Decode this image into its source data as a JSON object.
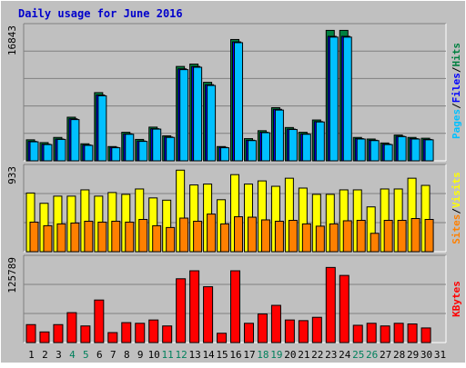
{
  "title": "Daily usage for June 2016",
  "colors": {
    "title": "#0000cc",
    "frame_bg": "#c0c0c0",
    "plot_bg": "#c0c0c0",
    "hits": "#008040",
    "files": "#0000ff",
    "pages": "#00c0ff",
    "visits": "#ffff00",
    "sites": "#ff8000",
    "kbytes": "#ff0000",
    "weekend_day": "#00805c",
    "weekday": "#000000",
    "grid": "#808080"
  },
  "chart_data": [
    {
      "type": "bar",
      "panel": "hits-files-pages",
      "ymax_label": "16843",
      "ylim": [
        0,
        16843
      ],
      "grid": true,
      "side_labels": [
        "Pages",
        "/",
        "Files",
        "/",
        "Hits"
      ],
      "series": [
        {
          "name": "Hits",
          "values": [
            2650,
            2300,
            2950,
            5500,
            2150,
            8600,
            1800,
            3600,
            2700,
            4250,
            3150,
            11900,
            12200,
            9900,
            1800,
            15300,
            2800,
            3800,
            6700,
            4200,
            3600,
            5150,
            16450,
            16450,
            2950,
            2750,
            2250,
            3250,
            2950,
            2850
          ]
        },
        {
          "name": "Files",
          "values": [
            2450,
            2100,
            2750,
            5300,
            2000,
            8300,
            1700,
            3400,
            2500,
            4050,
            3000,
            11600,
            11900,
            9600,
            1700,
            15000,
            2600,
            3600,
            6500,
            4000,
            3400,
            4950,
            15700,
            15700,
            2800,
            2600,
            2100,
            3100,
            2800,
            2700
          ]
        },
        {
          "name": "Pages",
          "values": [
            2400,
            2050,
            2700,
            5200,
            1950,
            8200,
            1650,
            3350,
            2450,
            4000,
            2950,
            11500,
            11800,
            9500,
            1650,
            14900,
            2550,
            3550,
            6400,
            3950,
            3350,
            4900,
            15600,
            15600,
            2750,
            2550,
            2050,
            3050,
            2750,
            2650
          ]
        }
      ]
    },
    {
      "type": "bar",
      "panel": "visits-sites",
      "ymax_label": "933",
      "ylim": [
        0,
        933
      ],
      "grid": true,
      "side_labels": [
        "Sites",
        "/",
        "Visits"
      ],
      "series": [
        {
          "name": "Visits",
          "values": [
            655,
            540,
            620,
            620,
            690,
            620,
            660,
            640,
            700,
            600,
            575,
            910,
            745,
            755,
            580,
            860,
            755,
            790,
            730,
            820,
            710,
            640,
            640,
            690,
            690,
            500,
            700,
            700,
            820,
            740
          ]
        },
        {
          "name": "Sites",
          "values": [
            330,
            290,
            310,
            320,
            340,
            330,
            340,
            330,
            360,
            290,
            270,
            375,
            340,
            420,
            310,
            390,
            385,
            355,
            340,
            350,
            310,
            285,
            310,
            345,
            350,
            205,
            350,
            350,
            370,
            360
          ]
        }
      ]
    },
    {
      "type": "bar",
      "panel": "kbytes",
      "ymax_label": "125789",
      "ylim": [
        0,
        125789
      ],
      "grid": true,
      "side_labels": [
        "KBytes"
      ],
      "series": [
        {
          "name": "KBytes",
          "values": [
            27000,
            16000,
            27000,
            45000,
            25000,
            64000,
            15000,
            30000,
            29000,
            34000,
            25000,
            96000,
            108000,
            84000,
            14000,
            108000,
            29000,
            43000,
            56000,
            34000,
            33000,
            38000,
            113000,
            101000,
            26000,
            29000,
            25000,
            29000,
            28000,
            22000
          ]
        }
      ]
    }
  ],
  "days": [
    "1",
    "2",
    "3",
    "4",
    "5",
    "6",
    "7",
    "8",
    "9",
    "10",
    "11",
    "12",
    "13",
    "14",
    "15",
    "16",
    "17",
    "18",
    "19",
    "20",
    "21",
    "22",
    "23",
    "24",
    "25",
    "26",
    "27",
    "28",
    "29",
    "30",
    "31"
  ],
  "weekend_days": [
    "4",
    "5",
    "11",
    "12",
    "18",
    "19",
    "25",
    "26"
  ]
}
